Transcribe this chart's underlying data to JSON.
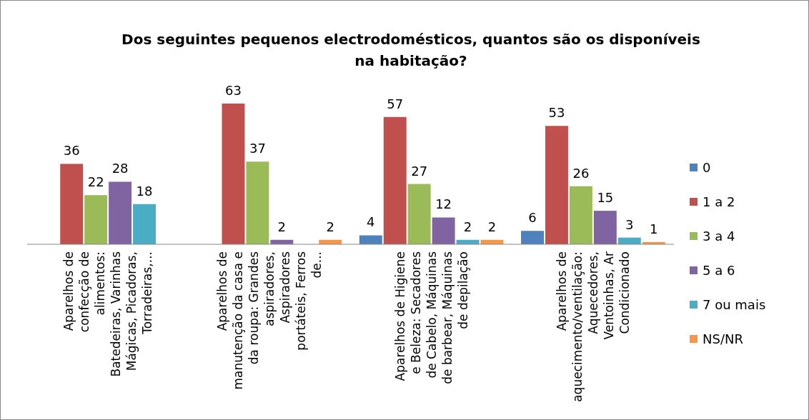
{
  "chart_data": {
    "type": "bar",
    "title": "Dos seguintes pequenos electrodomésticos, quantos são os disponíveis na habitação?",
    "categories": [
      "Aparelhos de confecção de alimentos: Batedeiras, Varinhas Mágicas, Picadoras, Torradeiras,...",
      "Aparelhos de manutenção da casa e da roupa: Grandes aspiradores, Aspiradores portáteis, Ferros de...",
      "Aparelhos de Higiene e Beleza: Secadores de Cabelo, Máquinas de barbear, Máquinas de depilação",
      "Aparelhos de aquecimento/ventilação: Aquecedores, Ventoinhas, Ar Condicionado"
    ],
    "series": [
      {
        "name": "0",
        "color": "#4f81bd",
        "values": [
          null,
          null,
          4,
          6
        ]
      },
      {
        "name": "1 a 2",
        "color": "#c0504d",
        "values": [
          36,
          63,
          57,
          53
        ]
      },
      {
        "name": "3 a 4",
        "color": "#9bbb59",
        "values": [
          22,
          37,
          27,
          26
        ]
      },
      {
        "name": "5 a 6",
        "color": "#8064a2",
        "values": [
          28,
          2,
          12,
          15
        ]
      },
      {
        "name": "7 ou mais",
        "color": "#4bacc6",
        "values": [
          18,
          null,
          2,
          3
        ]
      },
      {
        "name": "NS/NR",
        "color": "#f79646",
        "values": [
          null,
          2,
          2,
          1
        ]
      }
    ],
    "data_labels": true,
    "legend": "right",
    "grid": false
  }
}
